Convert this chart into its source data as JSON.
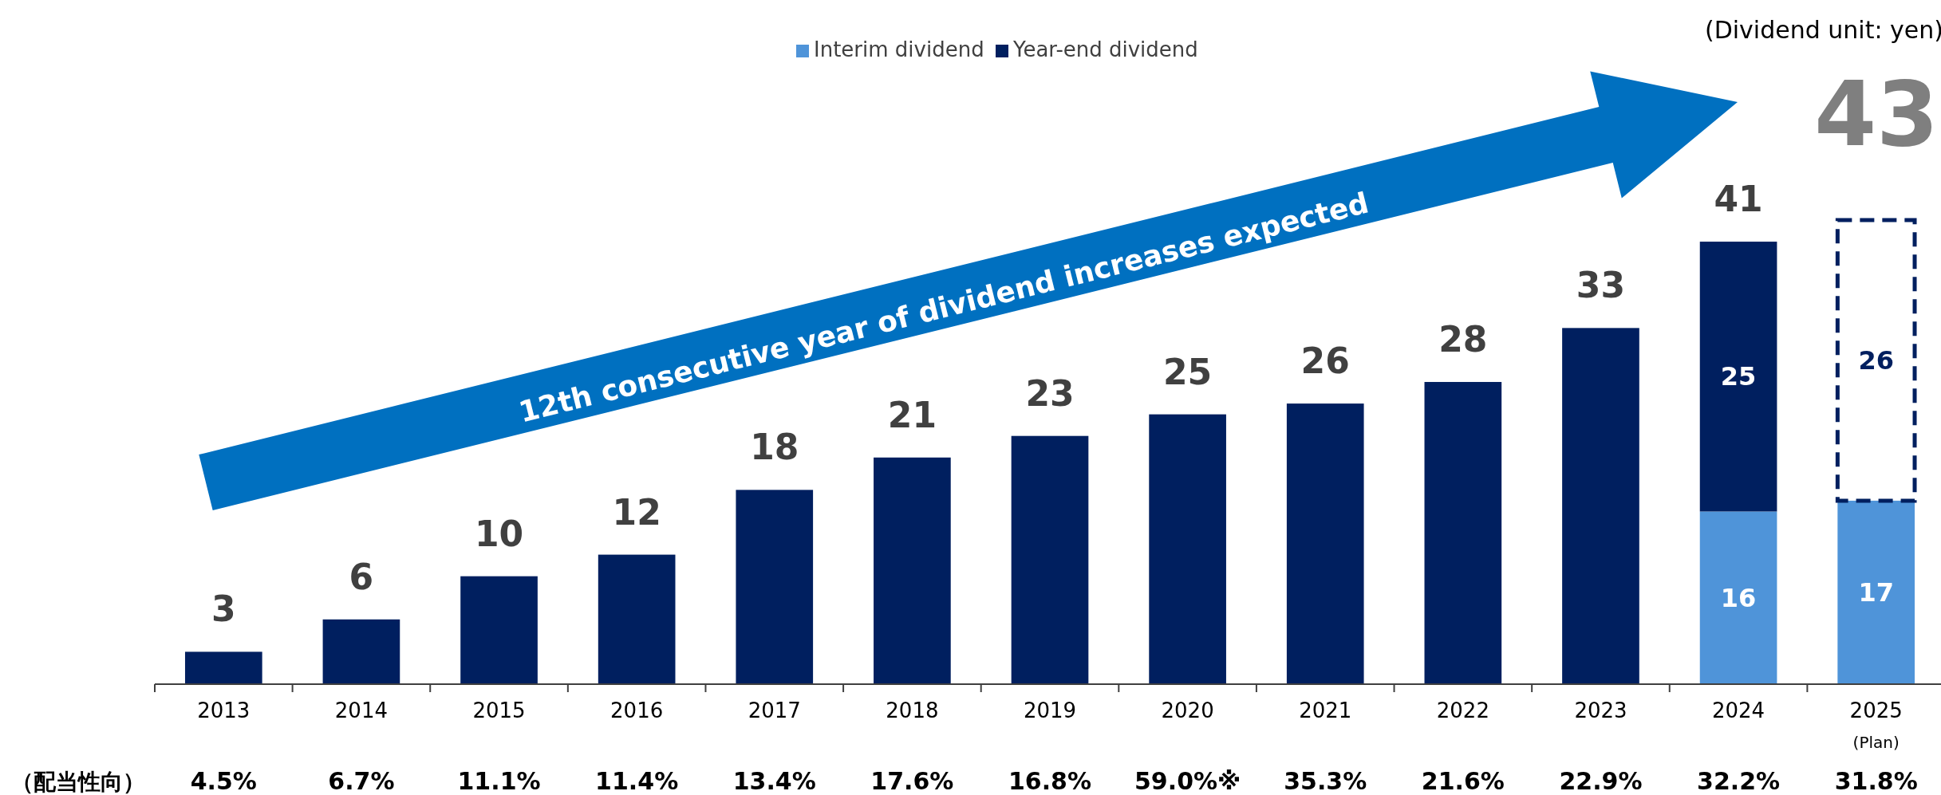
{
  "chart_data": {
    "type": "bar",
    "stacked": true,
    "categories": [
      "2013",
      "2014",
      "2015",
      "2016",
      "2017",
      "2018",
      "2019",
      "2020",
      "2021",
      "2022",
      "2023",
      "2024",
      "2025$_{(Plan)}$"
    ],
    "series": [
      {
        "name": "Interim dividend",
        "color": "#4f94d9",
        "values": [
          null,
          null,
          null,
          null,
          null,
          null,
          null,
          null,
          null,
          null,
          null,
          16,
          17
        ],
        "value_labels": [
          null,
          null,
          null,
          null,
          null,
          null,
          null,
          null,
          null,
          null,
          null,
          "16",
          "17"
        ]
      },
      {
        "name": "Year-end dividend",
        "color": "#001f5f",
        "values": [
          3,
          6,
          10,
          12,
          18,
          21,
          23,
          25,
          26,
          28,
          33,
          25,
          null
        ],
        "value_labels": [
          null,
          null,
          null,
          null,
          null,
          null,
          null,
          null,
          null,
          null,
          null,
          "25",
          null
        ]
      },
      {
        "color": "#001f5f",
        "line_style": "dashed",
        "values": [
          null,
          null,
          null,
          null,
          null,
          null,
          null,
          null,
          null,
          null,
          null,
          null,
          26
        ],
        "value_labels": [
          null,
          null,
          null,
          null,
          null,
          null,
          null,
          null,
          null,
          null,
          null,
          null,
          "26"
        ]
      }
    ],
    "totals": [
      "3",
      "6",
      "10",
      "12",
      "18",
      "21",
      "23",
      "25",
      "26",
      "28",
      "33",
      "41",
      "43"
    ],
    "legend": "top",
    "annotations": [
      "（配当性向）",
      "4.5%",
      "6.7%",
      "11.1%",
      "11.4%",
      "13.4%",
      "17.6%",
      "16.8%",
      "59.0%※",
      "35.3%",
      "21.6%",
      "22.9%",
      "32.2%",
      "31.8%",
      "(Dividend unit: yen)",
      "12th consecutive year of dividend increases expected"
    ]
  }
}
